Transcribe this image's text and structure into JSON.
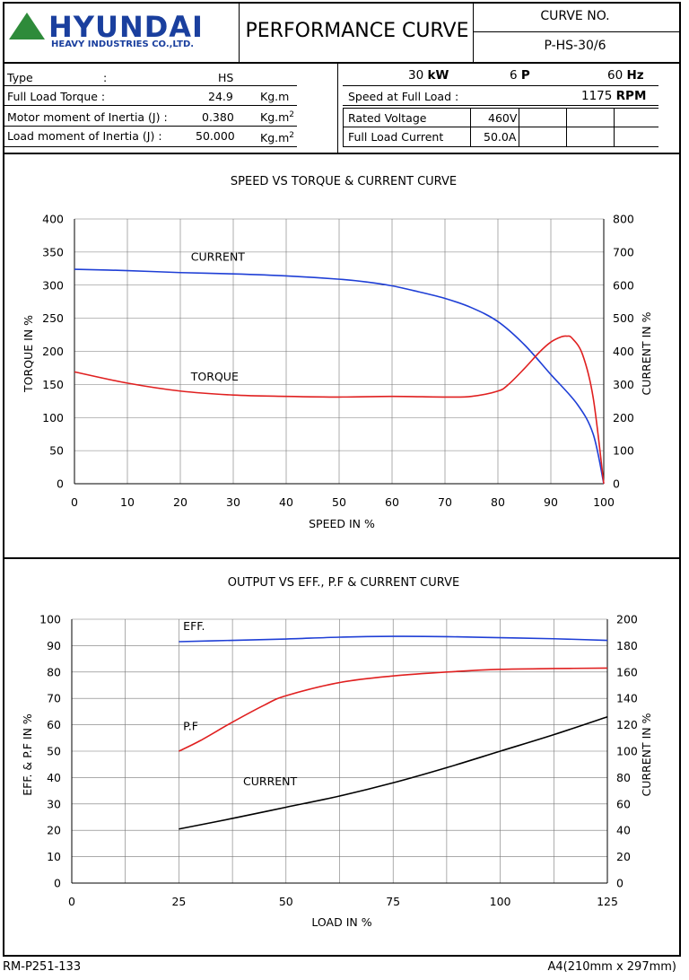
{
  "header": {
    "brand": "HYUNDAI",
    "brand_sub": "HEAVY INDUSTRIES CO.,LTD.",
    "title": "PERFORMANCE CURVE",
    "curve_no_label": "CURVE NO.",
    "curve_no": "P-HS-30/6",
    "brand_color": "#1a3f9e",
    "logo_color": "#2e8b3a"
  },
  "specs": {
    "type_label": "Type",
    "type_colon": ":",
    "type_value": "HS",
    "torque_label": "Full Load Torque :",
    "torque_value": "24.9",
    "torque_unit": "Kg.m",
    "motor_inertia_label": "Motor moment of Inertia (J) :",
    "motor_inertia_value": "0.380",
    "motor_inertia_unit": "Kg.m",
    "load_inertia_label": "Load moment of Inertia (J) :",
    "load_inertia_value": "50.000",
    "load_inertia_unit": "Kg.m",
    "unit_sup": "2",
    "power_value": "30",
    "power_unit": "kW",
    "poles_value": "6",
    "poles_unit": "P",
    "freq_value": "60",
    "freq_unit": "Hz",
    "speed_label": "Speed at Full Load :",
    "speed_value": "1175",
    "speed_unit": "RPM",
    "voltage_label": "Rated Voltage",
    "voltage_value": "460V",
    "current_label": "Full Load Current",
    "current_value": "50.0A"
  },
  "chart_data": [
    {
      "type": "line",
      "title": "SPEED VS TORQUE & CURRENT CURVE",
      "xlabel": "SPEED IN %",
      "ylabel_left": "TORQUE IN %",
      "ylabel_right": "CURRENT IN %",
      "xlim": [
        0,
        100
      ],
      "ylim_left": [
        0,
        400
      ],
      "ylim_right": [
        0,
        800
      ],
      "x_ticks": [
        0,
        10,
        20,
        30,
        40,
        50,
        60,
        70,
        80,
        90,
        100
      ],
      "y_ticks_left": [
        0,
        50,
        100,
        150,
        200,
        250,
        300,
        350,
        400
      ],
      "y_ticks_right": [
        0,
        100,
        200,
        300,
        400,
        500,
        600,
        700,
        800
      ],
      "grid": true,
      "series": [
        {
          "name": "CURRENT",
          "axis": "right",
          "color": "#1f3fd6",
          "x": [
            0,
            10,
            20,
            30,
            40,
            50,
            55,
            60,
            65,
            70,
            75,
            80,
            85,
            90,
            95,
            98,
            100
          ],
          "y": [
            648,
            644,
            638,
            634,
            628,
            618,
            610,
            598,
            580,
            560,
            532,
            490,
            420,
            330,
            240,
            150,
            0
          ]
        },
        {
          "name": "TORQUE",
          "axis": "left",
          "color": "#e02020",
          "x": [
            0,
            10,
            20,
            30,
            40,
            50,
            60,
            70,
            75,
            80,
            82,
            85,
            88,
            90,
            92,
            93,
            94,
            96,
            98,
            100
          ],
          "y": [
            169,
            152,
            140,
            134,
            132,
            131,
            132,
            131,
            132,
            140,
            150,
            174,
            200,
            214,
            222,
            223,
            220,
            195,
            130,
            0
          ]
        }
      ],
      "annotations": [
        {
          "text": "CURRENT",
          "x": 22,
          "y_left": 337
        },
        {
          "text": "TORQUE",
          "x": 22,
          "y_left": 156
        }
      ]
    },
    {
      "type": "line",
      "title": "OUTPUT VS EFF., P.F & CURRENT CURVE",
      "xlabel": "LOAD IN %",
      "ylabel_left": "EFF. & P.F IN %",
      "ylabel_right": "CURRENT IN %",
      "xlim": [
        0,
        125
      ],
      "ylim_left": [
        0,
        100
      ],
      "ylim_right": [
        0,
        200
      ],
      "x_ticks": [
        0,
        25,
        50,
        75,
        100,
        125
      ],
      "y_ticks_left": [
        0,
        10,
        20,
        30,
        40,
        50,
        60,
        70,
        80,
        90,
        100
      ],
      "y_ticks_right": [
        0,
        20,
        40,
        60,
        80,
        100,
        120,
        140,
        160,
        180,
        200
      ],
      "grid": true,
      "series": [
        {
          "name": "EFF.",
          "axis": "left",
          "color": "#1f3fd6",
          "x": [
            25,
            37.5,
            50,
            62.5,
            75,
            87.5,
            100,
            112.5,
            125
          ],
          "y": [
            91.5,
            92,
            92.5,
            93.2,
            93.5,
            93.4,
            93,
            92.6,
            92
          ]
        },
        {
          "name": "P.F",
          "axis": "left",
          "color": "#e02020",
          "x": [
            25,
            30,
            37.5,
            45,
            50,
            62.5,
            75,
            87.5,
            100,
            112.5,
            125
          ],
          "y": [
            50,
            54,
            61,
            67.5,
            71,
            76,
            78.5,
            80,
            81,
            81.3,
            81.5
          ]
        },
        {
          "name": "CURRENT",
          "axis": "right",
          "color": "#000000",
          "x": [
            25,
            37.5,
            50,
            62.5,
            75,
            87.5,
            100,
            112.5,
            125
          ],
          "y": [
            41,
            49,
            57.5,
            66,
            76,
            87.5,
            100,
            112.5,
            126
          ]
        }
      ],
      "annotations": [
        {
          "text": "EFF.",
          "x": 26,
          "y_left": 96
        },
        {
          "text": "P.F",
          "x": 26,
          "y_left": 58
        },
        {
          "text": "CURRENT",
          "x": 40,
          "y_left": 37
        }
      ]
    }
  ],
  "footer": {
    "doc_no": "RM-P251-133",
    "paper": "A4(210mm x 297mm)"
  }
}
